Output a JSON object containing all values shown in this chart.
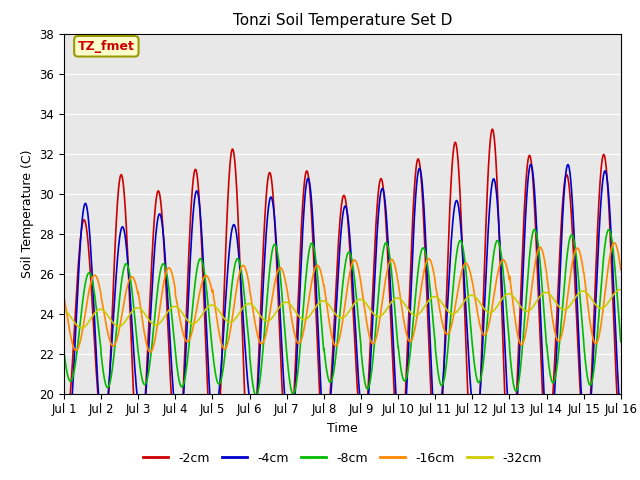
{
  "title": "Tonzi Soil Temperature Set D",
  "xlabel": "Time",
  "ylabel": "Soil Temperature (C)",
  "ylim": [
    20,
    38
  ],
  "xlim": [
    0,
    15
  ],
  "xtick_labels": [
    "Jul 1",
    "Jul 2",
    "Jul 3",
    "Jul 4",
    "Jul 5",
    "Jul 6",
    "Jul 7",
    "Jul 8",
    "Jul 9",
    "Jul 10",
    "Jul 11",
    "Jul 12",
    "Jul 13",
    "Jul 14",
    "Jul 15",
    "Jul 16"
  ],
  "series_colors": [
    "#cc0000",
    "#0000cc",
    "#00bb00",
    "#ff8800",
    "#cccc00"
  ],
  "series_labels": [
    "-2cm",
    "-4cm",
    "-8cm",
    "-16cm",
    "-32cm"
  ],
  "annotation_text": "TZ_fmet",
  "annotation_bg": "#ffffcc",
  "annotation_border": "#999900",
  "plot_bg": "#e8e8e8",
  "n_days": 15,
  "samples_per_day": 144,
  "base_temp": 23.5,
  "base_trend": 0.07,
  "amps": [
    5.8,
    4.8,
    2.8,
    1.6,
    0.45
  ],
  "phases": [
    0.58,
    0.65,
    0.85,
    1.15,
    1.45
  ],
  "base_offsets": [
    0.0,
    0.0,
    -0.2,
    0.5,
    0.2
  ],
  "amp_var": [
    0.5,
    0.4,
    0.4,
    0.4,
    0.0
  ],
  "amp_trend": [
    0.12,
    0.1,
    0.06,
    0.04,
    0.0
  ]
}
